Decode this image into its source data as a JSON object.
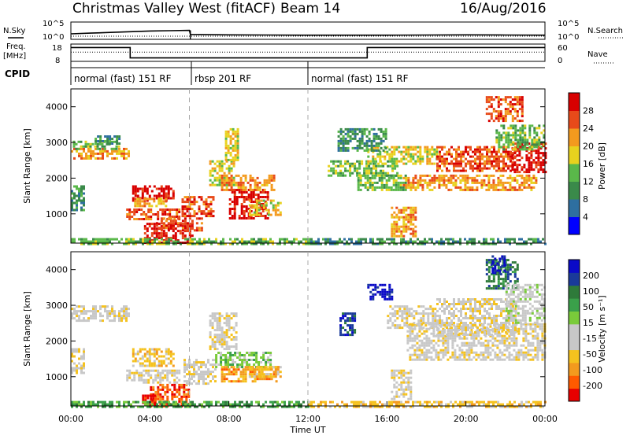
{
  "header": {
    "site": "Christmas Valley West (fitACF)",
    "beam": "Beam 14",
    "date": "16/Aug/2016"
  },
  "colors": {
    "background": "#ffffff",
    "axis": "#000000",
    "power_scale": [
      "#0000ff",
      "#2e6fa0",
      "#3a8a4a",
      "#5ab84a",
      "#e8d21e",
      "#f39a1e",
      "#e84a1a",
      "#d80000"
    ],
    "velocity_scale": [
      "#e80000",
      "#ff5a00",
      "#f39a1e",
      "#f5c21e",
      "#c8c8c8",
      "#c8c8c8",
      "#7acb3a",
      "#3aa04a",
      "#2e7a3a",
      "#1a3a9a",
      "#0a0ac8"
    ]
  },
  "chart_data": [
    {
      "type": "line",
      "panel": "sky-noise",
      "left_label": "N.Sky",
      "right_label": "N.Search",
      "left_ticks": [
        "10^5",
        "10^0"
      ],
      "right_ticks": [
        "10^5",
        "10^0"
      ],
      "x_hours": [
        0,
        1,
        2,
        3,
        4,
        5,
        6,
        6.05,
        8,
        10,
        12,
        14,
        16,
        18,
        20,
        22,
        24
      ],
      "sky_noise_log": [
        1.6,
        1.8,
        2.0,
        2.2,
        2.4,
        2.5,
        2.6,
        1.4,
        1.3,
        1.25,
        1.2,
        1.2,
        1.2,
        1.25,
        1.3,
        1.25,
        1.2
      ]
    },
    {
      "type": "line",
      "panel": "frequency",
      "left_label_lines": [
        "Freq.",
        "[MHz]"
      ],
      "right_label": "Nave",
      "left_ticks": [
        "18",
        "8"
      ],
      "right_ticks": [
        "60",
        "0"
      ],
      "freq_mhz_steps": [
        {
          "from": 0,
          "to": 3,
          "value": 16
        },
        {
          "from": 3,
          "to": 15,
          "value": 10
        },
        {
          "from": 15,
          "to": 24,
          "value": 16
        }
      ],
      "nave_constant": 32
    },
    {
      "type": "table",
      "panel": "cpid",
      "label": "CPID",
      "segments": [
        {
          "from": 0,
          "to": 6.1,
          "text": "normal (fast) 151 RF"
        },
        {
          "from": 6.1,
          "to": 12,
          "text": "rbsp 201 RF"
        },
        {
          "from": 12,
          "to": 24,
          "text": "normal (fast) 151 RF"
        }
      ]
    },
    {
      "type": "heatmap",
      "panel": "power",
      "ylabel": "Slant Range [km]",
      "xlim": [
        0,
        24
      ],
      "ylim": [
        180,
        4500
      ],
      "y_ticks": [
        1000,
        2000,
        3000,
        4000
      ],
      "colorbar_label": "Power [dB]",
      "colorbar_ticks": [
        4,
        8,
        12,
        16,
        20,
        24,
        28
      ],
      "regions": [
        {
          "x0": 0.0,
          "x1": 2.9,
          "y0": 2550,
          "y1": 2850,
          "level": 5
        },
        {
          "x0": 0.1,
          "x1": 2.5,
          "y0": 2850,
          "y1": 3050,
          "level": 3
        },
        {
          "x0": 1.2,
          "x1": 2.4,
          "y0": 2950,
          "y1": 3200,
          "level": 2
        },
        {
          "x0": 0.0,
          "x1": 0.6,
          "y0": 1100,
          "y1": 1800,
          "level": 2
        },
        {
          "x0": 3.1,
          "x1": 5.2,
          "y0": 1400,
          "y1": 1800,
          "level": 7
        },
        {
          "x0": 3.2,
          "x1": 4.8,
          "y0": 1200,
          "y1": 1450,
          "level": 5
        },
        {
          "x0": 2.8,
          "x1": 5.5,
          "y0": 850,
          "y1": 1150,
          "level": 6
        },
        {
          "x0": 3.7,
          "x1": 6.1,
          "y0": 180,
          "y1": 750,
          "level": 7
        },
        {
          "x0": 4.3,
          "x1": 6.6,
          "y0": 550,
          "y1": 900,
          "level": 6
        },
        {
          "x0": 5.6,
          "x1": 7.2,
          "y0": 950,
          "y1": 1500,
          "level": 6
        },
        {
          "x0": 7.0,
          "x1": 8.2,
          "y0": 1800,
          "y1": 2500,
          "level": 4
        },
        {
          "x0": 7.8,
          "x1": 8.5,
          "y0": 2500,
          "y1": 3400,
          "level": 4
        },
        {
          "x0": 8.0,
          "x1": 10.0,
          "y0": 850,
          "y1": 1700,
          "level": 7
        },
        {
          "x0": 7.6,
          "x1": 10.3,
          "y0": 1700,
          "y1": 2100,
          "level": 5
        },
        {
          "x0": 9.0,
          "x1": 10.6,
          "y0": 950,
          "y1": 1400,
          "level": 4
        },
        {
          "x0": 0.0,
          "x1": 12.0,
          "y0": 180,
          "y1": 320,
          "level": 3
        },
        {
          "x0": 13.0,
          "x1": 16.5,
          "y0": 2100,
          "y1": 2500,
          "level": 3
        },
        {
          "x0": 14.5,
          "x1": 17.0,
          "y0": 1700,
          "y1": 2100,
          "level": 3
        },
        {
          "x0": 15.0,
          "x1": 18.5,
          "y0": 2400,
          "y1": 2900,
          "level": 4
        },
        {
          "x0": 16.2,
          "x1": 17.4,
          "y0": 400,
          "y1": 1200,
          "level": 5
        },
        {
          "x0": 16.8,
          "x1": 23.5,
          "y0": 1700,
          "y1": 2100,
          "level": 5
        },
        {
          "x0": 18.5,
          "x1": 22.5,
          "y0": 2200,
          "y1": 2900,
          "level": 6
        },
        {
          "x0": 21.0,
          "x1": 22.8,
          "y0": 3600,
          "y1": 4300,
          "level": 6
        },
        {
          "x0": 22.3,
          "x1": 24.0,
          "y0": 2200,
          "y1": 3000,
          "level": 7
        },
        {
          "x0": 21.5,
          "x1": 24.0,
          "y0": 2800,
          "y1": 3500,
          "level": 3
        },
        {
          "x0": 13.5,
          "x1": 16.0,
          "y0": 2800,
          "y1": 3400,
          "level": 2
        },
        {
          "x0": 12.0,
          "x1": 24.0,
          "y0": 180,
          "y1": 320,
          "level": 2
        }
      ]
    },
    {
      "type": "heatmap",
      "panel": "velocity",
      "ylabel": "Slant Range [km]",
      "xlabel": "Time UT",
      "xlim": [
        0,
        24
      ],
      "ylim": [
        180,
        4500
      ],
      "y_ticks": [
        1000,
        2000,
        3000,
        4000
      ],
      "x_ticks": [
        "00:00",
        "04:00",
        "08:00",
        "12:00",
        "16:00",
        "20:00",
        "00:00"
      ],
      "colorbar_label": "Velocity [m s⁻¹]",
      "colorbar_ticks": [
        "-200",
        "-100",
        "-50",
        "-15",
        "15",
        "50",
        "100",
        "200"
      ],
      "regions": [
        {
          "x0": 0.0,
          "x1": 2.9,
          "y0": 2550,
          "y1": 3000,
          "level": 4
        },
        {
          "x0": 0.0,
          "x1": 0.6,
          "y0": 1100,
          "y1": 1800,
          "level": 4
        },
        {
          "x0": 3.1,
          "x1": 5.2,
          "y0": 1300,
          "y1": 1800,
          "level": 3
        },
        {
          "x0": 2.8,
          "x1": 5.5,
          "y0": 850,
          "y1": 1200,
          "level": 4
        },
        {
          "x0": 4.0,
          "x1": 6.0,
          "y0": 180,
          "y1": 800,
          "level": 1
        },
        {
          "x0": 3.6,
          "x1": 4.3,
          "y0": 180,
          "y1": 500,
          "level": 0
        },
        {
          "x0": 5.7,
          "x1": 7.3,
          "y0": 800,
          "y1": 1500,
          "level": 4
        },
        {
          "x0": 7.0,
          "x1": 8.4,
          "y0": 1800,
          "y1": 2800,
          "level": 4
        },
        {
          "x0": 7.3,
          "x1": 10.1,
          "y0": 1300,
          "y1": 1700,
          "level": 6
        },
        {
          "x0": 7.6,
          "x1": 10.5,
          "y0": 900,
          "y1": 1300,
          "level": 2
        },
        {
          "x0": 9.0,
          "x1": 10.6,
          "y0": 1000,
          "y1": 1300,
          "level": 3
        },
        {
          "x0": 0.0,
          "x1": 12.0,
          "y0": 180,
          "y1": 320,
          "level": 7
        },
        {
          "x0": 12.0,
          "x1": 24.0,
          "y0": 180,
          "y1": 320,
          "level": 3
        },
        {
          "x0": 13.6,
          "x1": 14.4,
          "y0": 2200,
          "y1": 2800,
          "level": 9
        },
        {
          "x0": 15.0,
          "x1": 16.2,
          "y0": 3200,
          "y1": 3600,
          "level": 10
        },
        {
          "x0": 16.0,
          "x1": 18.5,
          "y0": 2400,
          "y1": 3000,
          "level": 4
        },
        {
          "x0": 16.2,
          "x1": 17.2,
          "y0": 400,
          "y1": 1200,
          "level": 4
        },
        {
          "x0": 17.0,
          "x1": 24.0,
          "y0": 1500,
          "y1": 2500,
          "level": 4
        },
        {
          "x0": 18.5,
          "x1": 22.5,
          "y0": 2200,
          "y1": 3200,
          "level": 4
        },
        {
          "x0": 21.0,
          "x1": 22.6,
          "y0": 3500,
          "y1": 4300,
          "level": 8
        },
        {
          "x0": 22.0,
          "x1": 24.0,
          "y0": 2500,
          "y1": 3600,
          "level": 5
        },
        {
          "x0": 21.3,
          "x1": 22.0,
          "y0": 3900,
          "y1": 4400,
          "level": 10
        }
      ]
    }
  ]
}
